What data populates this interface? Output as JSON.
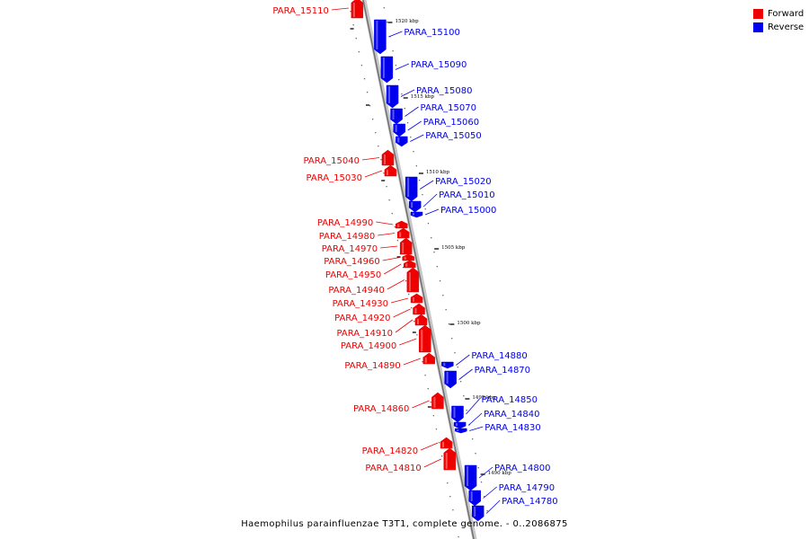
{
  "title": "Haemophilus parainfluenzae T3T1, complete genome. - 0..2086875",
  "colors": {
    "forward": "#ee0000",
    "reverse": "#0000ee",
    "axis": "#9a9a9a"
  },
  "legend": [
    {
      "label": "Forward",
      "color": "#ee0000"
    },
    {
      "label": "Reverse",
      "color": "#0000ee"
    }
  ],
  "ticks": [
    "1520 kbp",
    "1515 kbp",
    "1510 kbp",
    "1505 kbp",
    "1500 kbp",
    "1495 kbp",
    "1490 kbp"
  ],
  "genes": [
    {
      "name": "PARA_15110",
      "strand": "forward"
    },
    {
      "name": "PARA_15100",
      "strand": "reverse"
    },
    {
      "name": "PARA_15090",
      "strand": "reverse"
    },
    {
      "name": "PARA_15080",
      "strand": "reverse"
    },
    {
      "name": "PARA_15070",
      "strand": "reverse"
    },
    {
      "name": "PARA_15060",
      "strand": "reverse"
    },
    {
      "name": "PARA_15050",
      "strand": "reverse"
    },
    {
      "name": "PARA_15040",
      "strand": "forward"
    },
    {
      "name": "PARA_15030",
      "strand": "forward"
    },
    {
      "name": "PARA_15020",
      "strand": "reverse"
    },
    {
      "name": "PARA_15010",
      "strand": "reverse"
    },
    {
      "name": "PARA_15000",
      "strand": "reverse"
    },
    {
      "name": "PARA_14990",
      "strand": "forward"
    },
    {
      "name": "PARA_14980",
      "strand": "forward"
    },
    {
      "name": "PARA_14970",
      "strand": "forward"
    },
    {
      "name": "PARA_14960",
      "strand": "forward"
    },
    {
      "name": "PARA_14950",
      "strand": "forward"
    },
    {
      "name": "PARA_14940",
      "strand": "forward"
    },
    {
      "name": "PARA_14930",
      "strand": "forward"
    },
    {
      "name": "PARA_14920",
      "strand": "forward"
    },
    {
      "name": "PARA_14910",
      "strand": "forward"
    },
    {
      "name": "PARA_14900",
      "strand": "forward"
    },
    {
      "name": "PARA_14890",
      "strand": "forward"
    },
    {
      "name": "PARA_14880",
      "strand": "reverse"
    },
    {
      "name": "PARA_14870",
      "strand": "reverse"
    },
    {
      "name": "PARA_14860",
      "strand": "forward"
    },
    {
      "name": "PARA_14850",
      "strand": "reverse"
    },
    {
      "name": "PARA_14840",
      "strand": "reverse"
    },
    {
      "name": "PARA_14830",
      "strand": "reverse"
    },
    {
      "name": "PARA_14820",
      "strand": "forward"
    },
    {
      "name": "PARA_14810",
      "strand": "forward"
    },
    {
      "name": "PARA_14800",
      "strand": "reverse"
    },
    {
      "name": "PARA_14790",
      "strand": "reverse"
    },
    {
      "name": "PARA_14780",
      "strand": "reverse"
    }
  ]
}
